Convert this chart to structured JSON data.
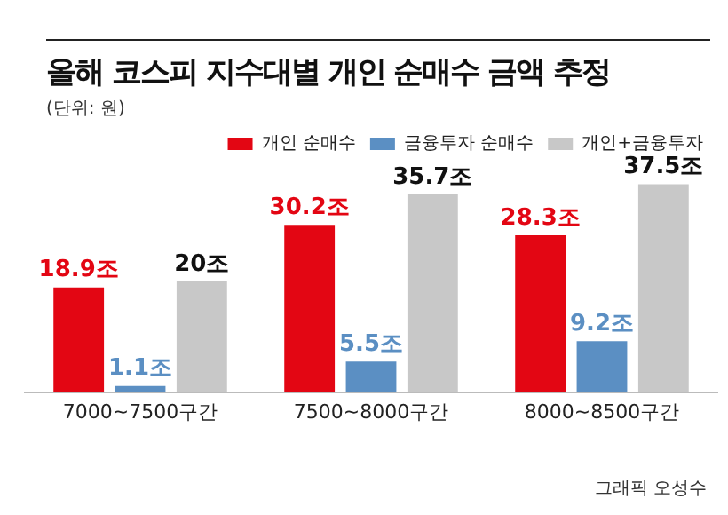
{
  "chart_data": {
    "type": "bar",
    "title": "올해 코스피 지수대별 개인 순매수 금액 추정",
    "subtitle": "(단위: 원)",
    "annotations": [
      "그래픽 오성수"
    ],
    "categories": [
      "7000~7500구간",
      "7500~8000구간",
      "8000~8500구간"
    ],
    "series": [
      {
        "name": "개인 순매수",
        "color": "#e30613",
        "values": [
          18.9,
          30.2,
          28.3
        ],
        "value_labels": [
          "18.9조",
          "30.2조",
          "28.3조"
        ]
      },
      {
        "name": "금융투자 순매수",
        "color": "#5b8fc3",
        "values": [
          1.1,
          5.5,
          9.2
        ],
        "value_labels": [
          "1.1조",
          "5.5조",
          "9.2조"
        ]
      },
      {
        "name": "개인+금융투자",
        "color": "#c8c8c8",
        "values": [
          20,
          35.7,
          37.5
        ],
        "value_labels": [
          "20조",
          "35.7조",
          "37.5조"
        ]
      }
    ],
    "tick_labels": "x",
    "grid": false,
    "legend": "top right"
  }
}
